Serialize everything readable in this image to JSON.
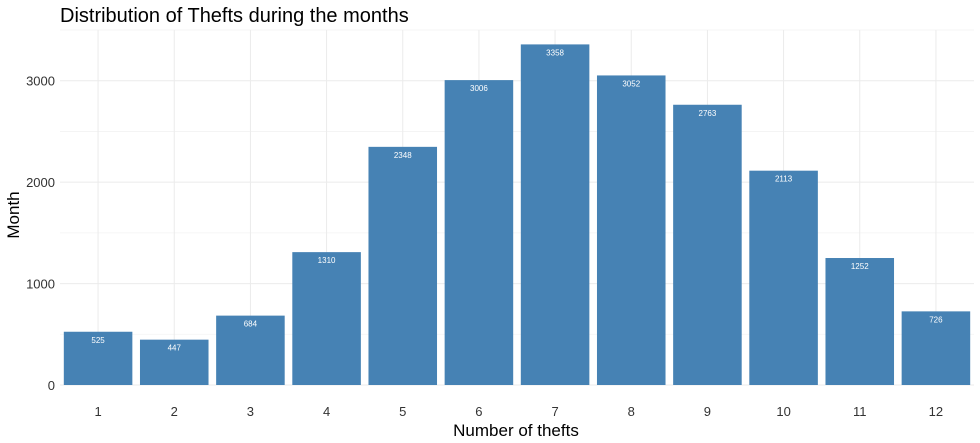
{
  "chart_data": {
    "type": "bar",
    "title": "Distribution of Thefts during the months",
    "xlabel": "Number of thefts",
    "ylabel": "Month",
    "categories": [
      "1",
      "2",
      "3",
      "4",
      "5",
      "6",
      "7",
      "8",
      "9",
      "10",
      "11",
      "12"
    ],
    "values": [
      525,
      447,
      684,
      1310,
      2348,
      3006,
      3358,
      3052,
      2763,
      2113,
      1252,
      726
    ],
    "data_labels": [
      "525",
      "447",
      "684",
      "1310",
      "2348",
      "3006",
      "3358",
      "3052",
      "2763",
      "2113",
      "1252",
      "726"
    ],
    "ylim": [
      0,
      3500
    ],
    "yticks": [
      0,
      1000,
      2000,
      3000
    ],
    "ytick_labels": [
      "0",
      "1000",
      "2000",
      "3000"
    ],
    "grid": true,
    "legend": "none",
    "bar_color": "#4682b4",
    "background": "#ffffff"
  }
}
